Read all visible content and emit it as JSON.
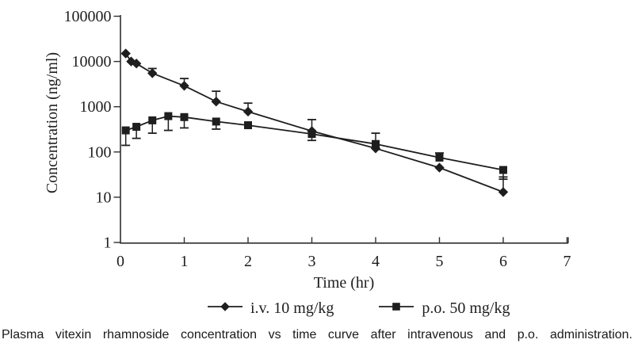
{
  "figure": {
    "caption": "Plasma vitexin rhamnoside concentration vs time curve after intravenous and p.o. administration."
  },
  "chart_data": {
    "type": "line",
    "title": "",
    "xlabel": "Time (hr)",
    "ylabel": "Concentration (ng/ml)",
    "x_scale": "linear",
    "y_scale": "log10",
    "xlim": [
      0,
      7
    ],
    "ylim": [
      1,
      100000
    ],
    "grid": false,
    "legend_position": "bottom",
    "x_ticks": {
      "values": [
        0,
        1,
        2,
        3,
        4,
        5,
        6,
        7
      ],
      "labels": [
        "0",
        "1",
        "2",
        "3",
        "4",
        "5",
        "6",
        "7"
      ]
    },
    "y_ticks": {
      "values": [
        1,
        10,
        100,
        1000,
        10000,
        100000
      ],
      "labels": [
        "1",
        "10",
        "100",
        "1000",
        "10000",
        "100000"
      ]
    },
    "colors": {
      "foreground": "#1e1e1e",
      "axis": "#2f2f2f",
      "background": "#ffffff"
    },
    "series": [
      {
        "name": "i.v. 10 mg/kg",
        "marker": "diamond",
        "points": [
          {
            "t": 0.083,
            "c": 15000
          },
          {
            "t": 0.167,
            "c": 10000
          },
          {
            "t": 0.25,
            "c": 9000
          },
          {
            "t": 0.5,
            "c": 5500,
            "err_hi": 7000
          },
          {
            "t": 1,
            "c": 2900,
            "err_hi": 4200
          },
          {
            "t": 1.5,
            "c": 1300,
            "err_hi": 2200
          },
          {
            "t": 2,
            "c": 780,
            "err_hi": 1200
          },
          {
            "t": 3,
            "c": 290,
            "err_hi": 520
          },
          {
            "t": 4,
            "c": 120
          },
          {
            "t": 5,
            "c": 45
          },
          {
            "t": 6,
            "c": 13,
            "err_hi": 28
          }
        ]
      },
      {
        "name": "p.o. 50 mg/kg",
        "marker": "square",
        "points": [
          {
            "t": 0.083,
            "c": 300,
            "err_lo": 140
          },
          {
            "t": 0.25,
            "c": 360,
            "err_lo": 200
          },
          {
            "t": 0.5,
            "c": 500,
            "err_lo": 260
          },
          {
            "t": 0.75,
            "c": 620,
            "err_lo": 300
          },
          {
            "t": 1,
            "c": 590,
            "err_lo": 340
          },
          {
            "t": 1.5,
            "c": 470,
            "err_lo": 320
          },
          {
            "t": 2,
            "c": 390
          },
          {
            "t": 3,
            "c": 250,
            "err_lo": 180
          },
          {
            "t": 4,
            "c": 150,
            "err_hi": 260
          },
          {
            "t": 5,
            "c": 75,
            "err_hi": 95
          },
          {
            "t": 6,
            "c": 40,
            "err_lo": 25
          }
        ]
      }
    ]
  }
}
